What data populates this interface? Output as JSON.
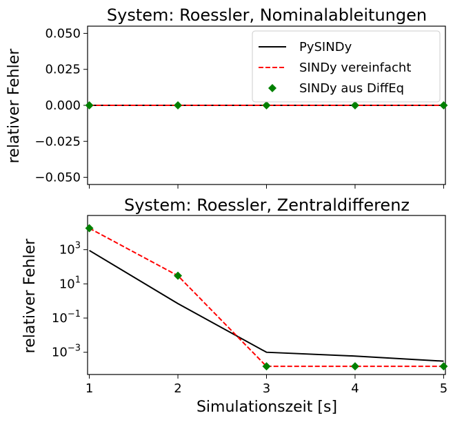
{
  "chart_data": [
    {
      "type": "line",
      "title": "System: Roessler, Nominalableitungen",
      "xlabel": "",
      "ylabel": "relativer Fehler",
      "x": [
        1,
        2,
        3,
        4,
        5
      ],
      "xlim": [
        0.98,
        5.02
      ],
      "ylim": [
        -0.055,
        0.055
      ],
      "yscale": "linear",
      "yticks": [
        0.05,
        0.025,
        0.0,
        -0.025,
        -0.05
      ],
      "ytick_labels": [
        "0.050",
        "0.025",
        "0.000",
        "−0.025",
        "−0.050"
      ],
      "xticks_labeled": false,
      "grid": false,
      "legend_position": "top-right",
      "series": [
        {
          "name": "PySINDy",
          "style": "solid line",
          "color": "#000000",
          "values": [
            0,
            0,
            0,
            0,
            0
          ]
        },
        {
          "name": "SINDy vereinfacht",
          "style": "dashed line",
          "color": "#ff0000",
          "values": [
            0,
            0,
            0,
            0,
            0
          ]
        },
        {
          "name": "SINDy aus DiffEq",
          "style": "diamond markers",
          "color": "#008000",
          "values": [
            0,
            0,
            0,
            0,
            0
          ]
        }
      ]
    },
    {
      "type": "line",
      "title": "System: Roessler, Zentraldifferenz",
      "xlabel": "Simulationszeit [s]",
      "ylabel": "relativer Fehler",
      "x": [
        1,
        2,
        3,
        4,
        5
      ],
      "xticks": [
        1,
        2,
        3,
        4,
        5
      ],
      "xlim": [
        0.98,
        5.02
      ],
      "yscale": "log",
      "ylim": [
        5e-05,
        100000
      ],
      "yticks": [
        1000,
        10,
        0.1,
        0.001
      ],
      "ytick_labels": [
        {
          "base": "10",
          "exp": "3"
        },
        {
          "base": "10",
          "exp": "1"
        },
        {
          "base": "10",
          "exp": "−1"
        },
        {
          "base": "10",
          "exp": "−3"
        }
      ],
      "grid": false,
      "series": [
        {
          "name": "PySINDy",
          "style": "solid line",
          "color": "#000000",
          "values": [
            900,
            0.7,
            0.001,
            0.0006,
            0.0003
          ]
        },
        {
          "name": "SINDy vereinfacht",
          "style": "dashed line",
          "color": "#ff0000",
          "values": [
            18000,
            30,
            0.00015,
            0.00015,
            0.00015
          ]
        },
        {
          "name": "SINDy aus DiffEq",
          "style": "diamond markers",
          "color": "#008000",
          "values": [
            18000,
            30,
            0.00015,
            0.00015,
            0.00015
          ]
        }
      ]
    }
  ]
}
